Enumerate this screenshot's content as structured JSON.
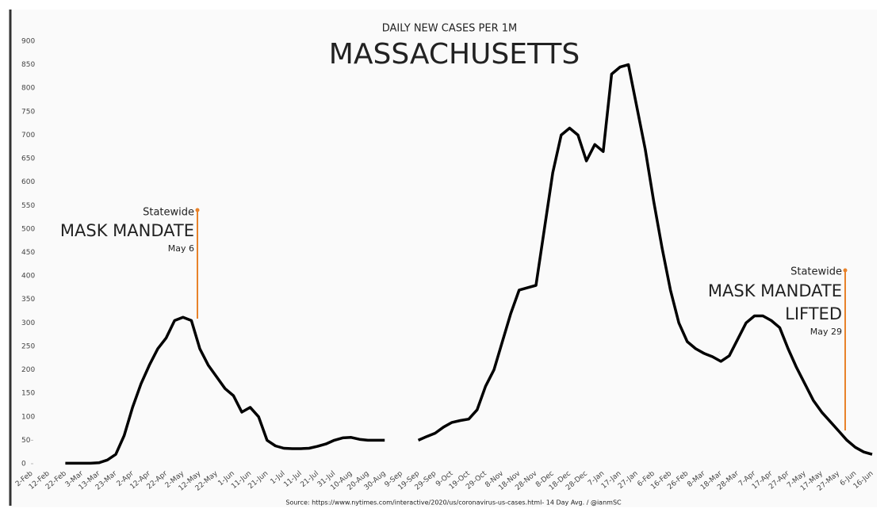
{
  "chart_data": {
    "type": "line",
    "subtitle": "DAILY NEW CASES PER 1M",
    "title": "MASSACHUSETTS",
    "source": "Source: https://www.nytimes.com/interactive/2020/us/coronavirus-us-cases.html- 14 Day Avg. / @ianmSC",
    "categories": [
      "2-Feb",
      null,
      "12-Feb",
      null,
      "22-Feb",
      null,
      "3-Mar",
      null,
      "13-Mar",
      null,
      "23-Mar",
      null,
      "2-Apr",
      null,
      "12-Apr",
      null,
      "22-Apr",
      null,
      "2-May",
      null,
      "12-May",
      null,
      "22-May",
      null,
      "1-Jun",
      null,
      "11-Jun",
      null,
      "21-Jun",
      null,
      "1-Jul",
      null,
      "11-Jul",
      null,
      "21-Jul",
      null,
      "31-Jul",
      null,
      "10-Aug",
      null,
      "20-Aug",
      null,
      "30-Aug",
      null,
      "9-Sep",
      null,
      "19-Sep",
      null,
      "29-Sep",
      null,
      "9-Oct",
      null,
      "19-Oct",
      null,
      "29-Oct",
      null,
      "8-Nov",
      null,
      "18-Nov",
      null,
      "28-Nov",
      null,
      "8-Dec",
      null,
      "18-Dec",
      null,
      "28-Dec",
      null,
      "7-Jan",
      null,
      "17-Jan",
      null,
      "27-Jan",
      null,
      "6-Feb",
      null,
      "16-Feb",
      null,
      "26-Feb",
      null,
      "8-Mar",
      null,
      "18-Mar",
      null,
      "28-Mar",
      null,
      "7-Apr",
      null,
      "17-Apr",
      null,
      "27-Apr",
      null,
      "7-May",
      null,
      "17-May",
      null,
      "27-May",
      null,
      "6-Jun",
      null,
      "16-Jun"
    ],
    "values": [
      null,
      null,
      null,
      null,
      1,
      1,
      1,
      1,
      2,
      8,
      20,
      60,
      120,
      170,
      210,
      245,
      268,
      305,
      312,
      305,
      245,
      210,
      185,
      160,
      145,
      110,
      120,
      100,
      50,
      38,
      33,
      32,
      32,
      33,
      37,
      42,
      50,
      55,
      56,
      52,
      50,
      50,
      50,
      null,
      null,
      null,
      50,
      58,
      65,
      78,
      88,
      92,
      95,
      115,
      165,
      200,
      260,
      320,
      370,
      375,
      380,
      500,
      620,
      700,
      715,
      700,
      645,
      680,
      665,
      830,
      845,
      850,
      760,
      670,
      560,
      460,
      370,
      300,
      260,
      245,
      235,
      228,
      218,
      230,
      265,
      300,
      315,
      315,
      305,
      290,
      245,
      205,
      170,
      135,
      110,
      90,
      70,
      50,
      35,
      25,
      20
    ],
    "color": "#000000",
    "ylim": [
      0,
      900
    ],
    "yticks": [
      0,
      50,
      100,
      150,
      200,
      250,
      300,
      350,
      400,
      450,
      500,
      550,
      600,
      650,
      700,
      750,
      800,
      850,
      900
    ],
    "annotations": [
      {
        "lines": [
          "Statewide",
          "MASK MANDATE",
          "May 6"
        ]
      },
      {
        "lines": [
          "Statewide",
          "MASK MANDATE",
          "LIFTED",
          "May 29"
        ]
      }
    ]
  }
}
